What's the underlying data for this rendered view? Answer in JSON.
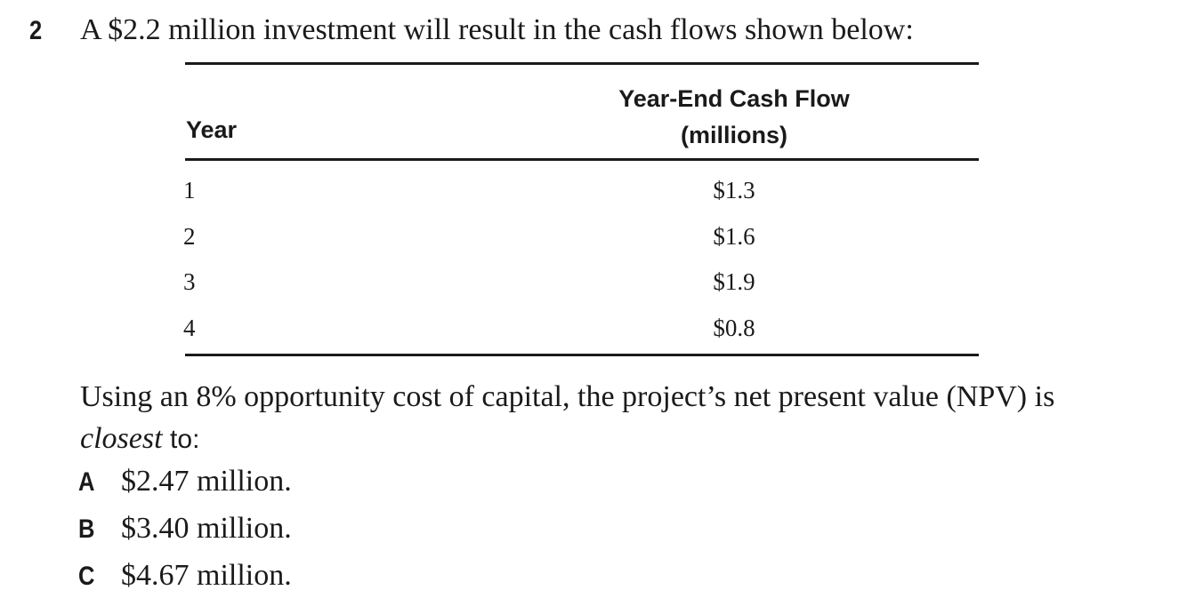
{
  "question": {
    "number": "2",
    "stem": "A $2.2 million investment will result in the cash flows shown below:"
  },
  "table": {
    "headers": {
      "year": "Year",
      "cash_flow_line1": "Year-End Cash Flow",
      "cash_flow_line2": "(millions)"
    },
    "rows": [
      {
        "year": "1",
        "cash_flow": "$1.3"
      },
      {
        "year": "2",
        "cash_flow": "$1.6"
      },
      {
        "year": "3",
        "cash_flow": "$1.9"
      },
      {
        "year": "4",
        "cash_flow": "$0.8"
      }
    ]
  },
  "prompt": {
    "text": "Using an 8% opportunity cost of capital, the project’s net present value (NPV) is",
    "emphasis": "closest",
    "tail": "to:"
  },
  "options": [
    {
      "letter": "A",
      "text": "$2.47 million."
    },
    {
      "letter": "B",
      "text": "$3.40 million."
    },
    {
      "letter": "C",
      "text": "$4.67 million."
    }
  ]
}
